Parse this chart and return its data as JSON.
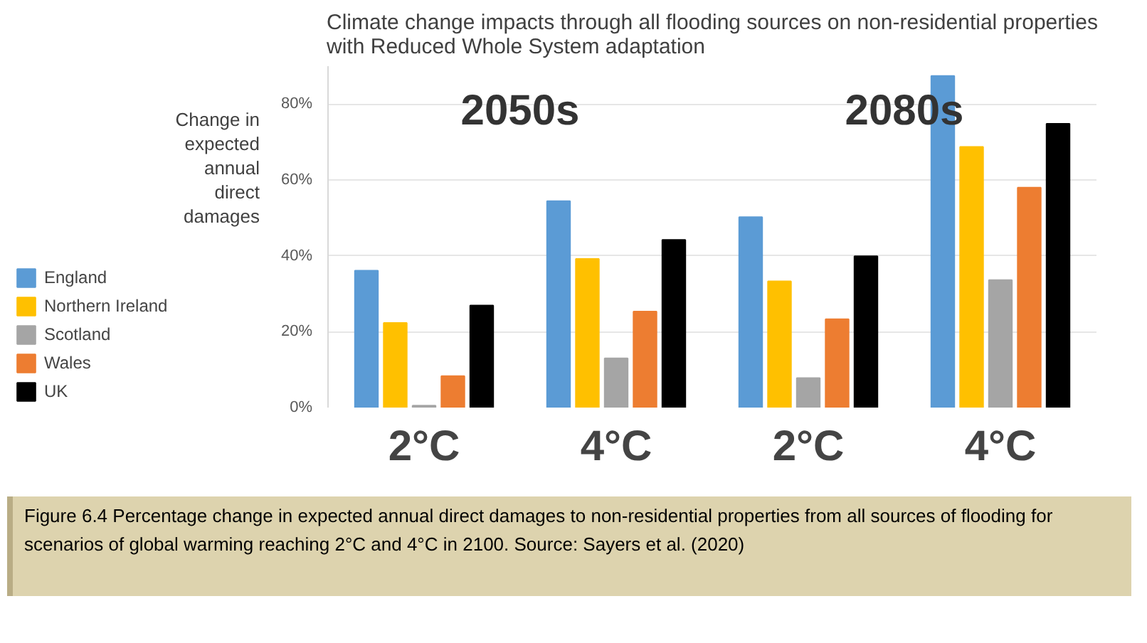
{
  "chart_data": {
    "type": "bar",
    "title": "Climate change impacts through all flooding sources on non-residential properties with Reduced Whole System adaptation",
    "ylabel": "Change in expected annual direct damages",
    "categories": [
      "2°C",
      "4°C",
      "2°C",
      "4°C"
    ],
    "series": [
      {
        "name": "England",
        "color": "#5b9bd5",
        "values": [
          36.1,
          54.4,
          50.2,
          87.4
        ]
      },
      {
        "name": "Northern Ireland",
        "color": "#ffc000",
        "values": [
          22.3,
          39.2,
          33.3,
          68.7
        ]
      },
      {
        "name": "Scotland",
        "color": "#a5a5a5",
        "values": [
          0.5,
          13.0,
          7.8,
          33.6
        ]
      },
      {
        "name": "Wales",
        "color": "#ed7d31",
        "values": [
          8.3,
          25.3,
          23.3,
          58.0
        ]
      },
      {
        "name": "UK",
        "color": "#000000",
        "values": [
          26.9,
          44.2,
          39.9,
          74.8
        ]
      }
    ],
    "ylim": [
      0,
      90
    ],
    "yticks": [
      {
        "value": 0,
        "label": "0%"
      },
      {
        "value": 20,
        "label": "20%"
      },
      {
        "value": 40,
        "label": "40%"
      },
      {
        "value": 60,
        "label": "60%"
      },
      {
        "value": 80,
        "label": "80%"
      }
    ],
    "grid": "y",
    "legend": "left",
    "annotations": [
      "2050s",
      "2080s",
      "Figure 6.4 Percentage change in expected annual direct damages to non-residential properties from all sources of flooding for scenarios of global warming reaching 2°C and 4°C in 2100. Source: Sayers et al. (2020)"
    ]
  }
}
